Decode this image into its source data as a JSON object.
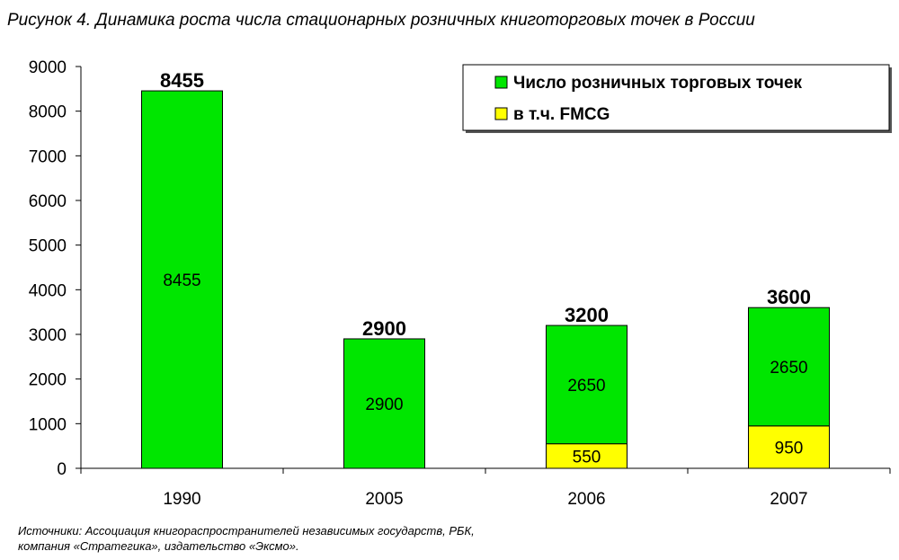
{
  "title": "Рисунок 4. Динамика роста числа стационарных розничных книготорговых точек в России",
  "source": [
    "Источники: Ассоциация книгораспространителей независимых государств, РБК,",
    "компания «Стратегика», издательство «Эксмо»."
  ],
  "chart_data": {
    "type": "bar",
    "stacked": true,
    "categories": [
      "1990",
      "2005",
      "2006",
      "2007"
    ],
    "totals": [
      8455,
      2900,
      3200,
      3600
    ],
    "series": [
      {
        "name": "в т.ч. FMCG",
        "values": [
          0,
          0,
          550,
          950
        ],
        "color": "#ffff00"
      },
      {
        "name": "Число розничных торговых точек",
        "values": [
          8455,
          2900,
          2650,
          2650
        ],
        "color": "#00e600"
      }
    ],
    "ylim": [
      0,
      9000
    ],
    "yticks": [
      0,
      1000,
      2000,
      3000,
      4000,
      5000,
      6000,
      7000,
      8000,
      9000
    ],
    "legend": [
      {
        "label": "Число розничных торговых точек",
        "color": "#00e600"
      },
      {
        "label": "в т.ч. FMCG",
        "color": "#ffff00"
      }
    ],
    "legend_position": "top-right",
    "grid": false
  }
}
